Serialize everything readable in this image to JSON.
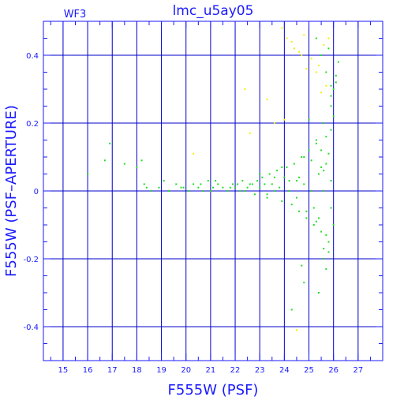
{
  "chart_data": {
    "type": "scatter",
    "title": "lmc_u5ay05",
    "panel_label": "WF3",
    "xlabel": "F555W (PSF)",
    "ylabel": "F555W (PSF–APERTURE)",
    "xlim": [
      14.2,
      28.0
    ],
    "ylim": [
      -0.5,
      0.5
    ],
    "xticks": [
      15,
      16,
      17,
      18,
      19,
      20,
      21,
      22,
      23,
      24,
      25,
      26,
      27
    ],
    "yticks": [
      -0.4,
      -0.2,
      0,
      0.2,
      0.4
    ],
    "ytick_labels": [
      "-0.4",
      "-0.2",
      "0",
      "0.2",
      "0.4"
    ],
    "grid": true,
    "colors": {
      "axes": "#1a1aff",
      "grid": "#0000cc",
      "series_main": "#22dd22",
      "series_flagged": "#f0f000"
    },
    "series": [
      {
        "color_key": "series_main",
        "x": [
          16.0,
          16.7,
          16.9,
          17.5,
          18.0,
          18.2,
          18.3,
          18.4,
          18.6,
          18.9,
          19.1,
          19.3,
          19.6,
          19.9,
          20.1,
          20.3,
          20.5,
          20.7,
          20.9,
          21.0,
          21.1,
          21.3,
          21.5,
          21.7,
          21.9,
          22.0,
          22.2,
          22.3,
          22.5,
          22.6,
          22.8,
          22.9,
          23.0,
          23.1,
          23.2,
          23.3,
          23.4,
          23.5,
          23.6,
          23.7,
          23.8,
          23.9,
          24.0,
          24.1,
          24.2,
          24.3,
          24.4,
          24.5,
          24.6,
          24.7,
          24.8,
          24.9,
          25.0,
          25.1,
          25.2,
          25.3,
          25.4,
          25.5,
          25.6,
          25.7,
          25.8,
          25.9,
          26.0,
          26.1,
          26.2,
          25.3,
          25.5,
          25.7,
          25.9,
          26.0,
          25.6,
          25.8,
          25.4,
          25.7,
          25.9,
          26.1,
          25.5,
          25.8,
          25.2,
          25.6,
          24.8,
          24.6,
          24.9,
          25.1,
          25.4,
          25.6,
          25.9,
          25.5,
          25.7,
          25.8,
          26.0,
          25.3,
          25.6,
          25.9,
          22.4,
          22.7,
          23.0,
          23.3,
          23.6,
          23.9,
          24.2,
          24.5,
          24.8,
          21.8,
          22.1,
          21.2,
          20.6,
          19.8,
          24.3,
          24.7,
          25.0,
          25.3,
          25.7,
          25.9
        ],
        "y": [
          0.05,
          0.09,
          0.14,
          0.08,
          0.07,
          0.09,
          0.02,
          0.01,
          0.0,
          0.01,
          0.03,
          0.0,
          0.02,
          0.01,
          0.0,
          0.02,
          0.01,
          0.0,
          0.03,
          0.0,
          0.01,
          0.02,
          0.01,
          0.0,
          0.02,
          0.01,
          0.0,
          0.03,
          0.01,
          0.02,
          -0.01,
          0.03,
          0.01,
          0.04,
          0.02,
          -0.02,
          0.05,
          0.02,
          0.0,
          0.06,
          0.01,
          -0.03,
          0.04,
          0.07,
          0.0,
          -0.04,
          0.08,
          0.03,
          -0.06,
          0.1,
          0.02,
          -0.08,
          0.12,
          0.0,
          -0.1,
          0.15,
          0.05,
          -0.12,
          0.2,
          0.08,
          -0.15,
          0.25,
          0.3,
          0.34,
          0.38,
          0.45,
          0.4,
          0.35,
          0.28,
          0.22,
          -0.2,
          -0.18,
          -0.3,
          -0.13,
          0.18,
          0.32,
          0.12,
          0.42,
          -0.05,
          0.0,
          -0.27,
          0.04,
          -0.06,
          0.09,
          -0.08,
          0.06,
          -0.05,
          0.07,
          0.16,
          0.11,
          -0.1,
          0.14,
          -0.17,
          0.03,
          0.0,
          0.02,
          0.05,
          -0.01,
          0.04,
          0.07,
          0.03,
          -0.02,
          0.1,
          0.01,
          0.02,
          0.03,
          0.02,
          0.01,
          -0.35,
          -0.22,
          0.21,
          -0.09,
          -0.23,
          0.31
        ]
      },
      {
        "color_key": "series_flagged",
        "x": [
          20.3,
          22.4,
          22.6,
          23.3,
          23.6,
          23.9,
          24.1,
          24.4,
          24.6,
          24.8,
          25.1,
          25.4,
          25.6,
          25.8,
          24.3,
          24.7,
          24.9,
          25.3,
          25.5,
          25.7,
          24.5,
          24.0
        ],
        "y": [
          0.11,
          0.3,
          0.17,
          0.27,
          0.2,
          0.48,
          0.45,
          0.42,
          0.41,
          0.46,
          0.39,
          0.37,
          0.43,
          0.45,
          0.44,
          0.4,
          0.36,
          0.35,
          0.29,
          0.31,
          -0.41,
          0.21
        ]
      }
    ]
  }
}
